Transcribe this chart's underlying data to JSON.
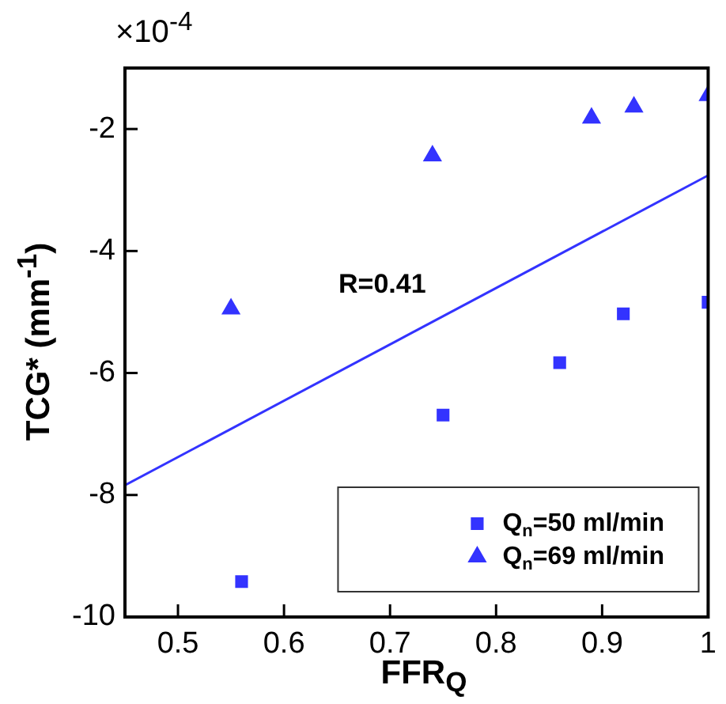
{
  "chart_data": {
    "type": "scatter",
    "xlabel": "FFR$_{Q}$",
    "ylabel": "TCG* (mm$^{-1}$)",
    "annotations": [
      "×10$^{-4}$",
      "R=0.41"
    ],
    "xlim": [
      0.45,
      1
    ],
    "xticks": [
      0.5,
      0.6,
      0.7,
      0.8,
      0.9,
      1
    ],
    "ylim": [
      -10,
      -1
    ],
    "yticks": [
      -10,
      -8,
      -6,
      -4,
      -2
    ],
    "legend": "bottom right",
    "grid": false,
    "series": [
      {
        "name": "Q$_{n}$=50 ml/min",
        "color": "#3333ff",
        "marker": "square",
        "x": [
          0.56,
          0.75,
          0.86,
          0.92,
          1.0
        ],
        "values": [
          -9.42,
          -6.69,
          -5.83,
          -5.03,
          -4.84
        ]
      },
      {
        "name": "Q$_{n}$=69 ml/min",
        "color": "#3333ff",
        "marker": "triangle",
        "x": [
          0.55,
          0.74,
          0.89,
          0.93,
          1.0
        ],
        "values": [
          -4.95,
          -2.44,
          -1.82,
          -1.64,
          -1.45
        ]
      },
      {
        "type": "line",
        "color": "#3333ff",
        "marker": "none",
        "x": [
          0.45,
          1.0
        ],
        "values": [
          -7.84,
          -2.76
        ]
      }
    ]
  }
}
